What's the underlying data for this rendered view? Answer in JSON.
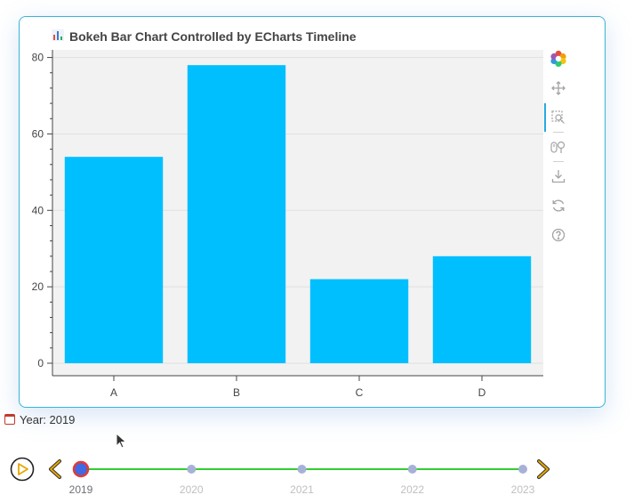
{
  "chart_data": {
    "type": "bar",
    "title": "Bokeh Bar Chart Controlled by ECharts Timeline",
    "categories": [
      "A",
      "B",
      "C",
      "D"
    ],
    "values": [
      54,
      78,
      22,
      28
    ],
    "ylim": [
      0,
      82
    ],
    "yticks": [
      0,
      20,
      40,
      60,
      80
    ],
    "bar_color": "#00bfff",
    "background_color": "#f2f2f2",
    "grid": true,
    "xlabel": "",
    "ylabel": ""
  },
  "toolbar": {
    "items": [
      {
        "name": "bokeh-logo-icon",
        "type": "logo"
      },
      {
        "name": "pan-icon",
        "type": "tool",
        "active": true
      },
      {
        "name": "box-zoom-icon",
        "type": "tool"
      },
      {
        "name": "wheel-zoom-icon",
        "type": "tool"
      },
      {
        "name": "save-icon",
        "type": "tool"
      },
      {
        "name": "reset-icon",
        "type": "tool"
      },
      {
        "name": "help-icon",
        "type": "tool"
      }
    ]
  },
  "year_display": {
    "label": "Year: 2019",
    "icon": "calendar-icon"
  },
  "timeline": {
    "years": [
      "2019",
      "2020",
      "2021",
      "2022",
      "2023"
    ],
    "current_index": 0,
    "line_color": "#32cd32",
    "point_color": "#a7b1d8",
    "current_fill": "#4169e1",
    "current_border": "#e53935",
    "control_color": "#e6a800",
    "play_icon": "play-icon",
    "prev_icon": "prev-arrow-icon",
    "next_icon": "next-arrow-icon"
  }
}
